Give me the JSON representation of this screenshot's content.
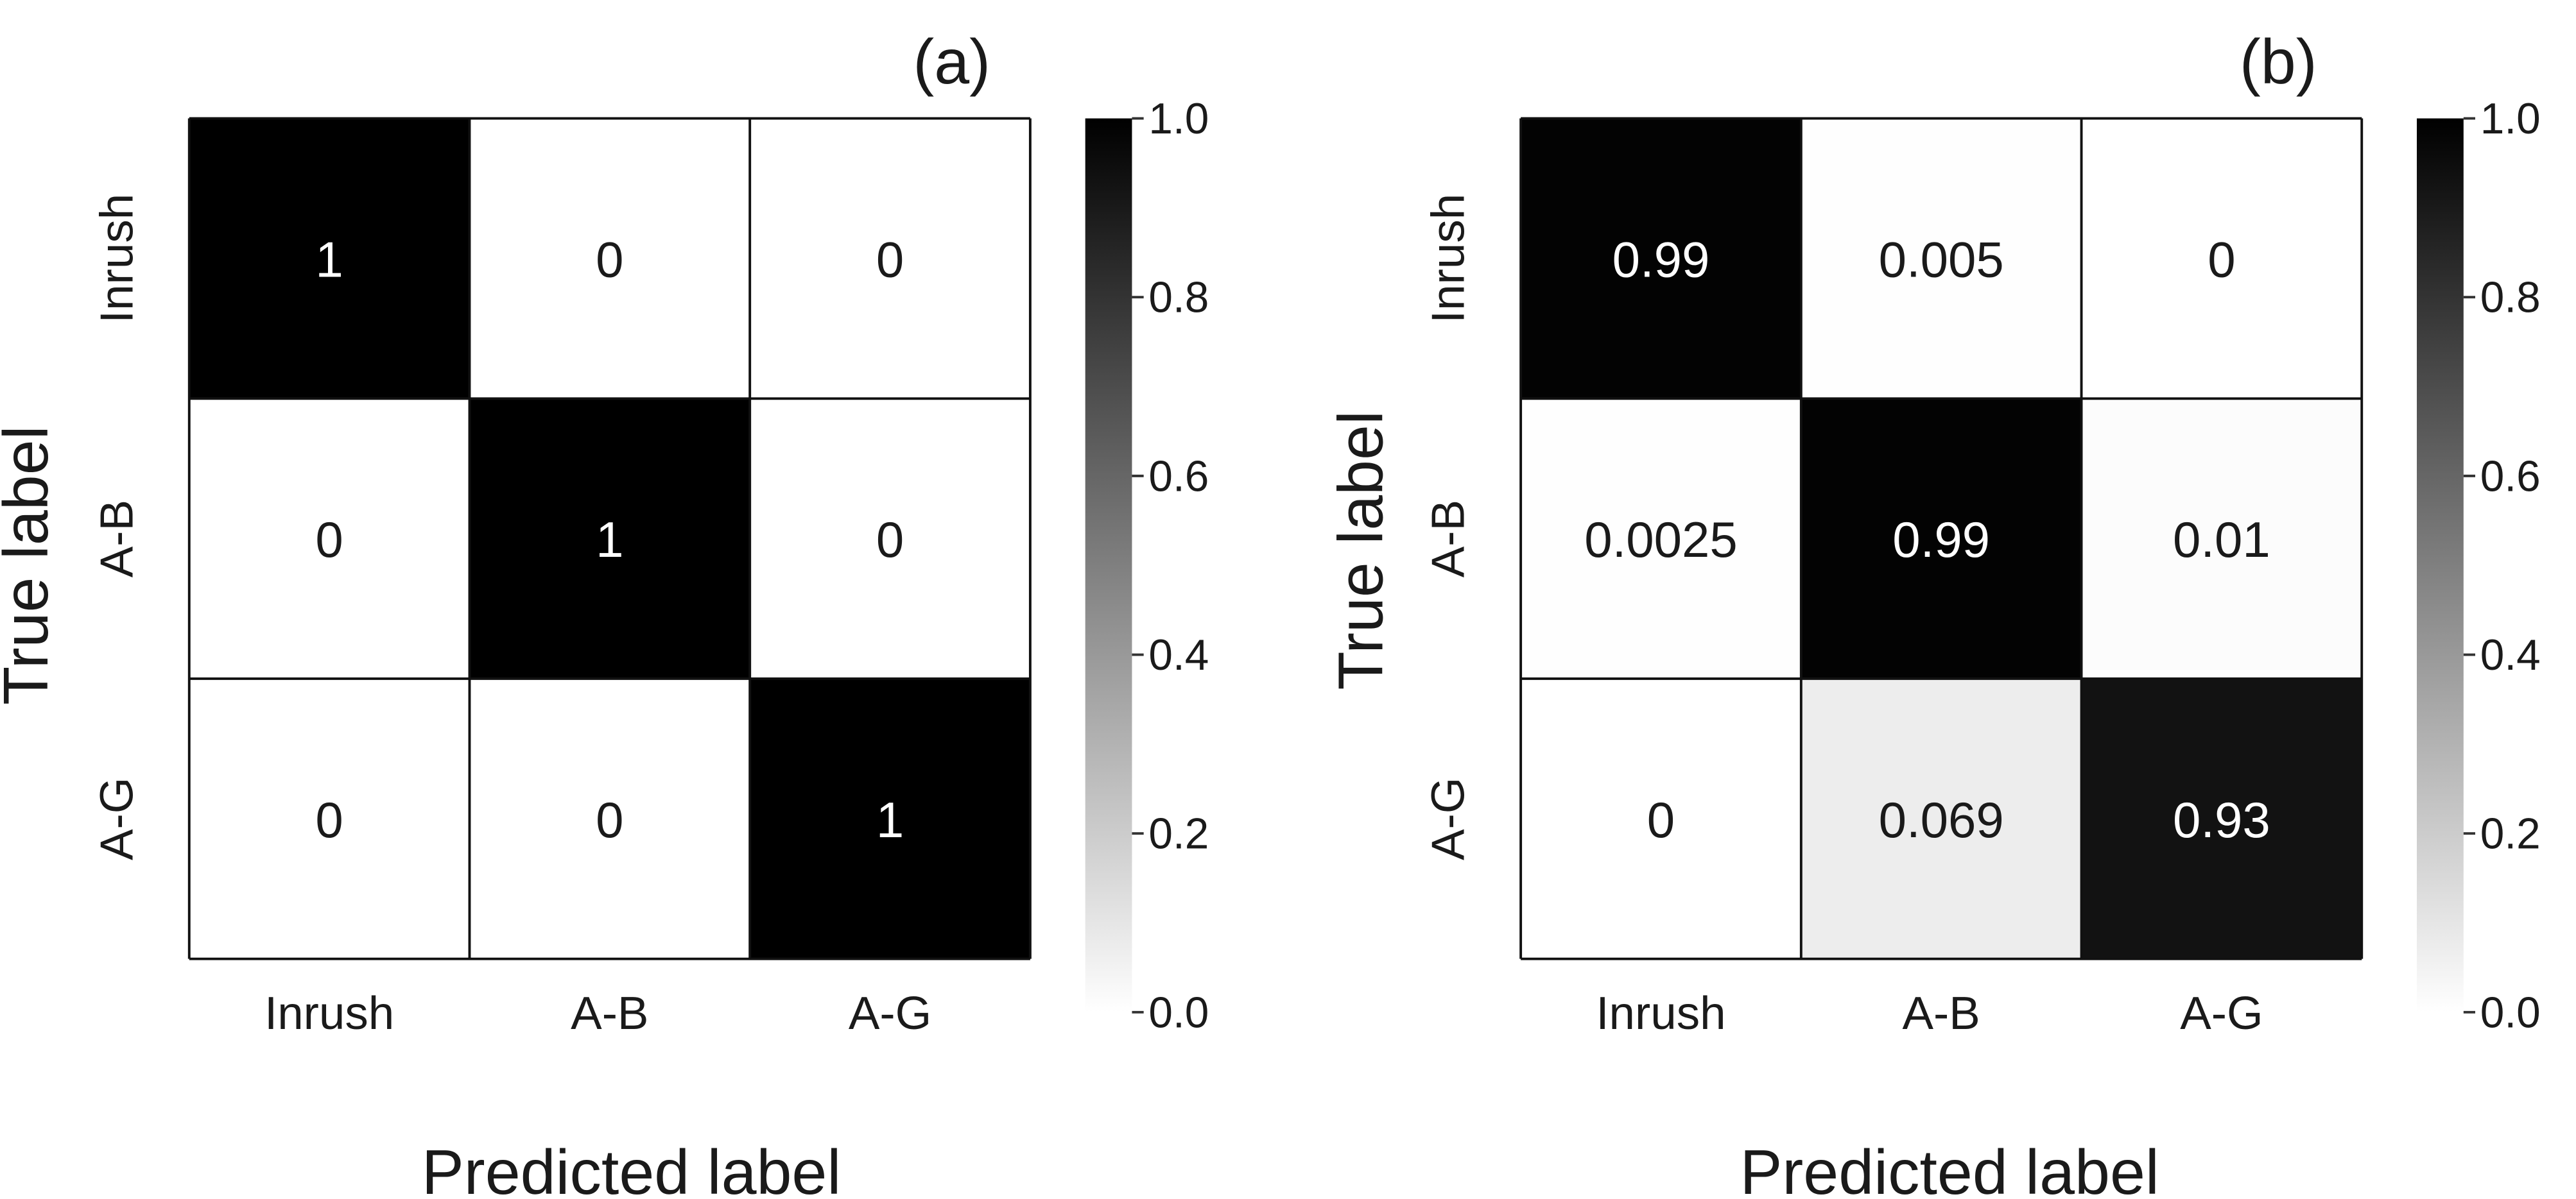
{
  "chart_data": [
    {
      "type": "heatmap",
      "title": "(a)",
      "xlabel": "Predicted label",
      "ylabel": "True label",
      "x_categories": [
        "Inrush",
        "A-B",
        "A-G"
      ],
      "y_categories": [
        "Inrush",
        "A-B",
        "A-G"
      ],
      "values": [
        [
          1,
          0,
          0
        ],
        [
          0,
          1,
          0
        ],
        [
          0,
          0,
          1
        ]
      ],
      "value_labels": [
        [
          "1",
          "0",
          "0"
        ],
        [
          "0",
          "1",
          "0"
        ],
        [
          "0",
          "0",
          "1"
        ]
      ],
      "colorbar": {
        "range": [
          0.0,
          1.0
        ],
        "ticks": [
          "0.0",
          "0.2",
          "0.4",
          "0.6",
          "0.8",
          "1.0"
        ],
        "colormap": "white-to-black"
      }
    },
    {
      "type": "heatmap",
      "title": "(b)",
      "xlabel": "Predicted label",
      "ylabel": "True label",
      "x_categories": [
        "Inrush",
        "A-B",
        "A-G"
      ],
      "y_categories": [
        "Inrush",
        "A-B",
        "A-G"
      ],
      "values": [
        [
          0.99,
          0.005,
          0
        ],
        [
          0.0025,
          0.99,
          0.01
        ],
        [
          0,
          0.069,
          0.93
        ]
      ],
      "value_labels": [
        [
          "0.99",
          "0.005",
          "0"
        ],
        [
          "0.0025",
          "0.99",
          "0.01"
        ],
        [
          "0",
          "0.069",
          "0.93"
        ]
      ],
      "colorbar": {
        "range": [
          0.0,
          1.0
        ],
        "ticks": [
          "0.0",
          "0.2",
          "0.4",
          "0.6",
          "0.8",
          "1.0"
        ],
        "colormap": "white-to-black"
      }
    }
  ]
}
